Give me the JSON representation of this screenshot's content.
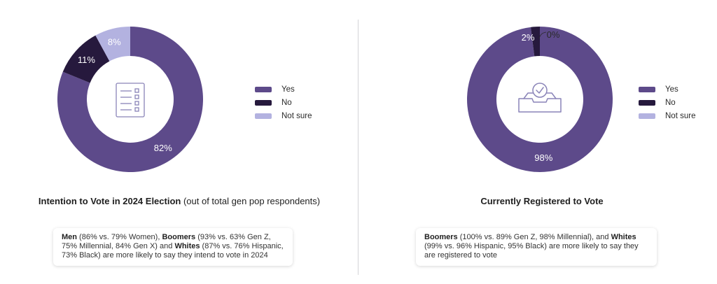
{
  "colors": {
    "yes": "#5d4a8a",
    "no": "#26193d",
    "not_sure": "#b3b2e0",
    "divider": "#d4d4d8"
  },
  "legend": [
    "Yes",
    "No",
    "Not sure"
  ],
  "chart_data": [
    {
      "type": "pie",
      "style": "donut",
      "title_bold": "Intention to Vote in 2024 Election",
      "title_rest": " (out of total gen pop respondents)",
      "categories": [
        "Yes",
        "No",
        "Not sure"
      ],
      "values": [
        82,
        11,
        8
      ],
      "labels": [
        "82%",
        "11%",
        "8%"
      ],
      "center_icon": "checklist-icon",
      "legend_placement": "right"
    },
    {
      "type": "pie",
      "style": "donut",
      "title_bold": "Currently Registered to Vote",
      "title_rest": "",
      "categories": [
        "Yes",
        "No",
        "Not sure"
      ],
      "values": [
        98,
        2,
        0
      ],
      "labels": [
        "98%",
        "2%",
        "0%"
      ],
      "center_icon": "inbox-check-icon",
      "legend_placement": "right"
    }
  ],
  "notes": [
    [
      {
        "t": "Men",
        "b": true
      },
      {
        "t": " (86% vs. 79% Women), "
      },
      {
        "t": "Boomers",
        "b": true
      },
      {
        "t": " (93% vs. 63% Gen Z, 75% Millennial, 84% Gen X) and "
      },
      {
        "t": "Whites",
        "b": true
      },
      {
        "t": " (87% vs. 76%  Hispanic, 73% Black) are more  likely to say they intend to  vote in 2024"
      }
    ],
    [
      {
        "t": "Boomers",
        "b": true
      },
      {
        "t": " (100% vs. 89% Gen Z,  98% Millennial), and "
      },
      {
        "t": "Whites",
        "b": true
      },
      {
        "t": " (99% vs. 96% Hispanic, 95%  Black) are more likely to say  they are registered to vote"
      }
    ]
  ]
}
